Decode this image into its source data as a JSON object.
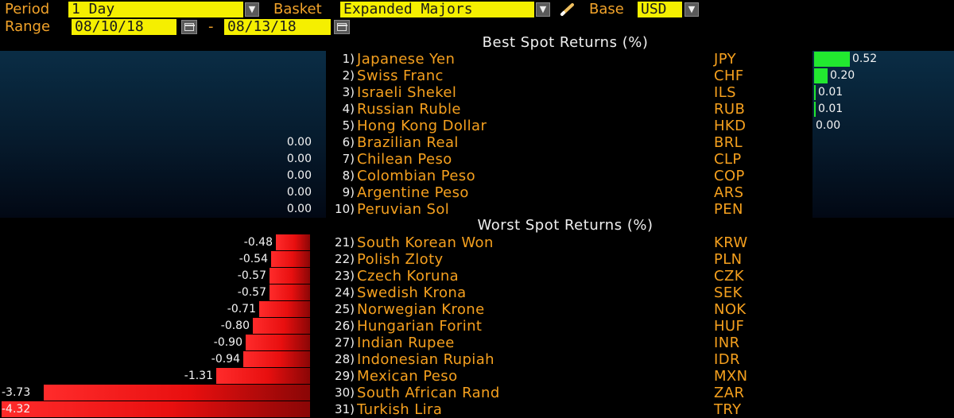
{
  "controls": {
    "period_label": "Period",
    "period_value": "1 Day",
    "basket_label": "Basket",
    "basket_value": "Expanded Majors",
    "base_label": "Base",
    "base_value": "USD",
    "range_label": "Range",
    "range_start": "08/10/18",
    "range_sep": "-",
    "range_end": "08/13/18",
    "edit_icon": "pencil-icon",
    "dropdown_icon": "triangle-down-icon",
    "calendar_icon": "calendar-icon"
  },
  "best": {
    "title": "Best Spot Returns (%)",
    "rows": [
      {
        "rank": "1)",
        "name": "Japanese Yen",
        "code": "JPY",
        "value": "0.52",
        "return": 0.52
      },
      {
        "rank": "2)",
        "name": "Swiss Franc",
        "code": "CHF",
        "value": "0.20",
        "return": 0.2
      },
      {
        "rank": "3)",
        "name": "Israeli Shekel",
        "code": "ILS",
        "value": "0.01",
        "return": 0.01
      },
      {
        "rank": "4)",
        "name": "Russian Ruble",
        "code": "RUB",
        "value": "0.01",
        "return": 0.01
      },
      {
        "rank": "5)",
        "name": "Hong Kong Dollar",
        "code": "HKD",
        "value": "0.00",
        "return": 0.0
      },
      {
        "rank": "6)",
        "name": "Brazilian Real",
        "code": "BRL",
        "value": "0.00",
        "return": 0.0
      },
      {
        "rank": "7)",
        "name": "Chilean Peso",
        "code": "CLP",
        "value": "0.00",
        "return": 0.0
      },
      {
        "rank": "8)",
        "name": "Colombian Peso",
        "code": "COP",
        "value": "0.00",
        "return": 0.0
      },
      {
        "rank": "9)",
        "name": "Argentine Peso",
        "code": "ARS",
        "value": "0.00",
        "return": 0.0
      },
      {
        "rank": "10)",
        "name": "Peruvian Sol",
        "code": "PEN",
        "value": "0.00",
        "return": 0.0
      }
    ]
  },
  "worst": {
    "title": "Worst Spot Returns (%)",
    "rows": [
      {
        "rank": "21)",
        "name": "South Korean Won",
        "code": "KRW",
        "value": "-0.48",
        "return": -0.48
      },
      {
        "rank": "22)",
        "name": "Polish Zloty",
        "code": "PLN",
        "value": "-0.54",
        "return": -0.54
      },
      {
        "rank": "23)",
        "name": "Czech Koruna",
        "code": "CZK",
        "value": "-0.57",
        "return": -0.57
      },
      {
        "rank": "24)",
        "name": "Swedish Krona",
        "code": "SEK",
        "value": "-0.57",
        "return": -0.57
      },
      {
        "rank": "25)",
        "name": "Norwegian Krone",
        "code": "NOK",
        "value": "-0.71",
        "return": -0.71
      },
      {
        "rank": "26)",
        "name": "Hungarian Forint",
        "code": "HUF",
        "value": "-0.80",
        "return": -0.8
      },
      {
        "rank": "27)",
        "name": "Indian Rupee",
        "code": "INR",
        "value": "-0.90",
        "return": -0.9
      },
      {
        "rank": "28)",
        "name": "Indonesian Rupiah",
        "code": "IDR",
        "value": "-0.94",
        "return": -0.94
      },
      {
        "rank": "29)",
        "name": "Mexican Peso",
        "code": "MXN",
        "value": "-1.31",
        "return": -1.31
      },
      {
        "rank": "30)",
        "name": "South African Rand",
        "code": "ZAR",
        "value": "-3.73",
        "return": -3.73
      },
      {
        "rank": "31)",
        "name": "Turkish Lira",
        "code": "TRY",
        "value": "-4.32",
        "return": -4.32
      }
    ]
  },
  "colors": {
    "label_orange": "#f2a32a",
    "field_yellow": "#f5ef00",
    "gain_green": "#22e830",
    "loss_red": "#ff2b2b",
    "panel_navy": "#0a2d45"
  }
}
